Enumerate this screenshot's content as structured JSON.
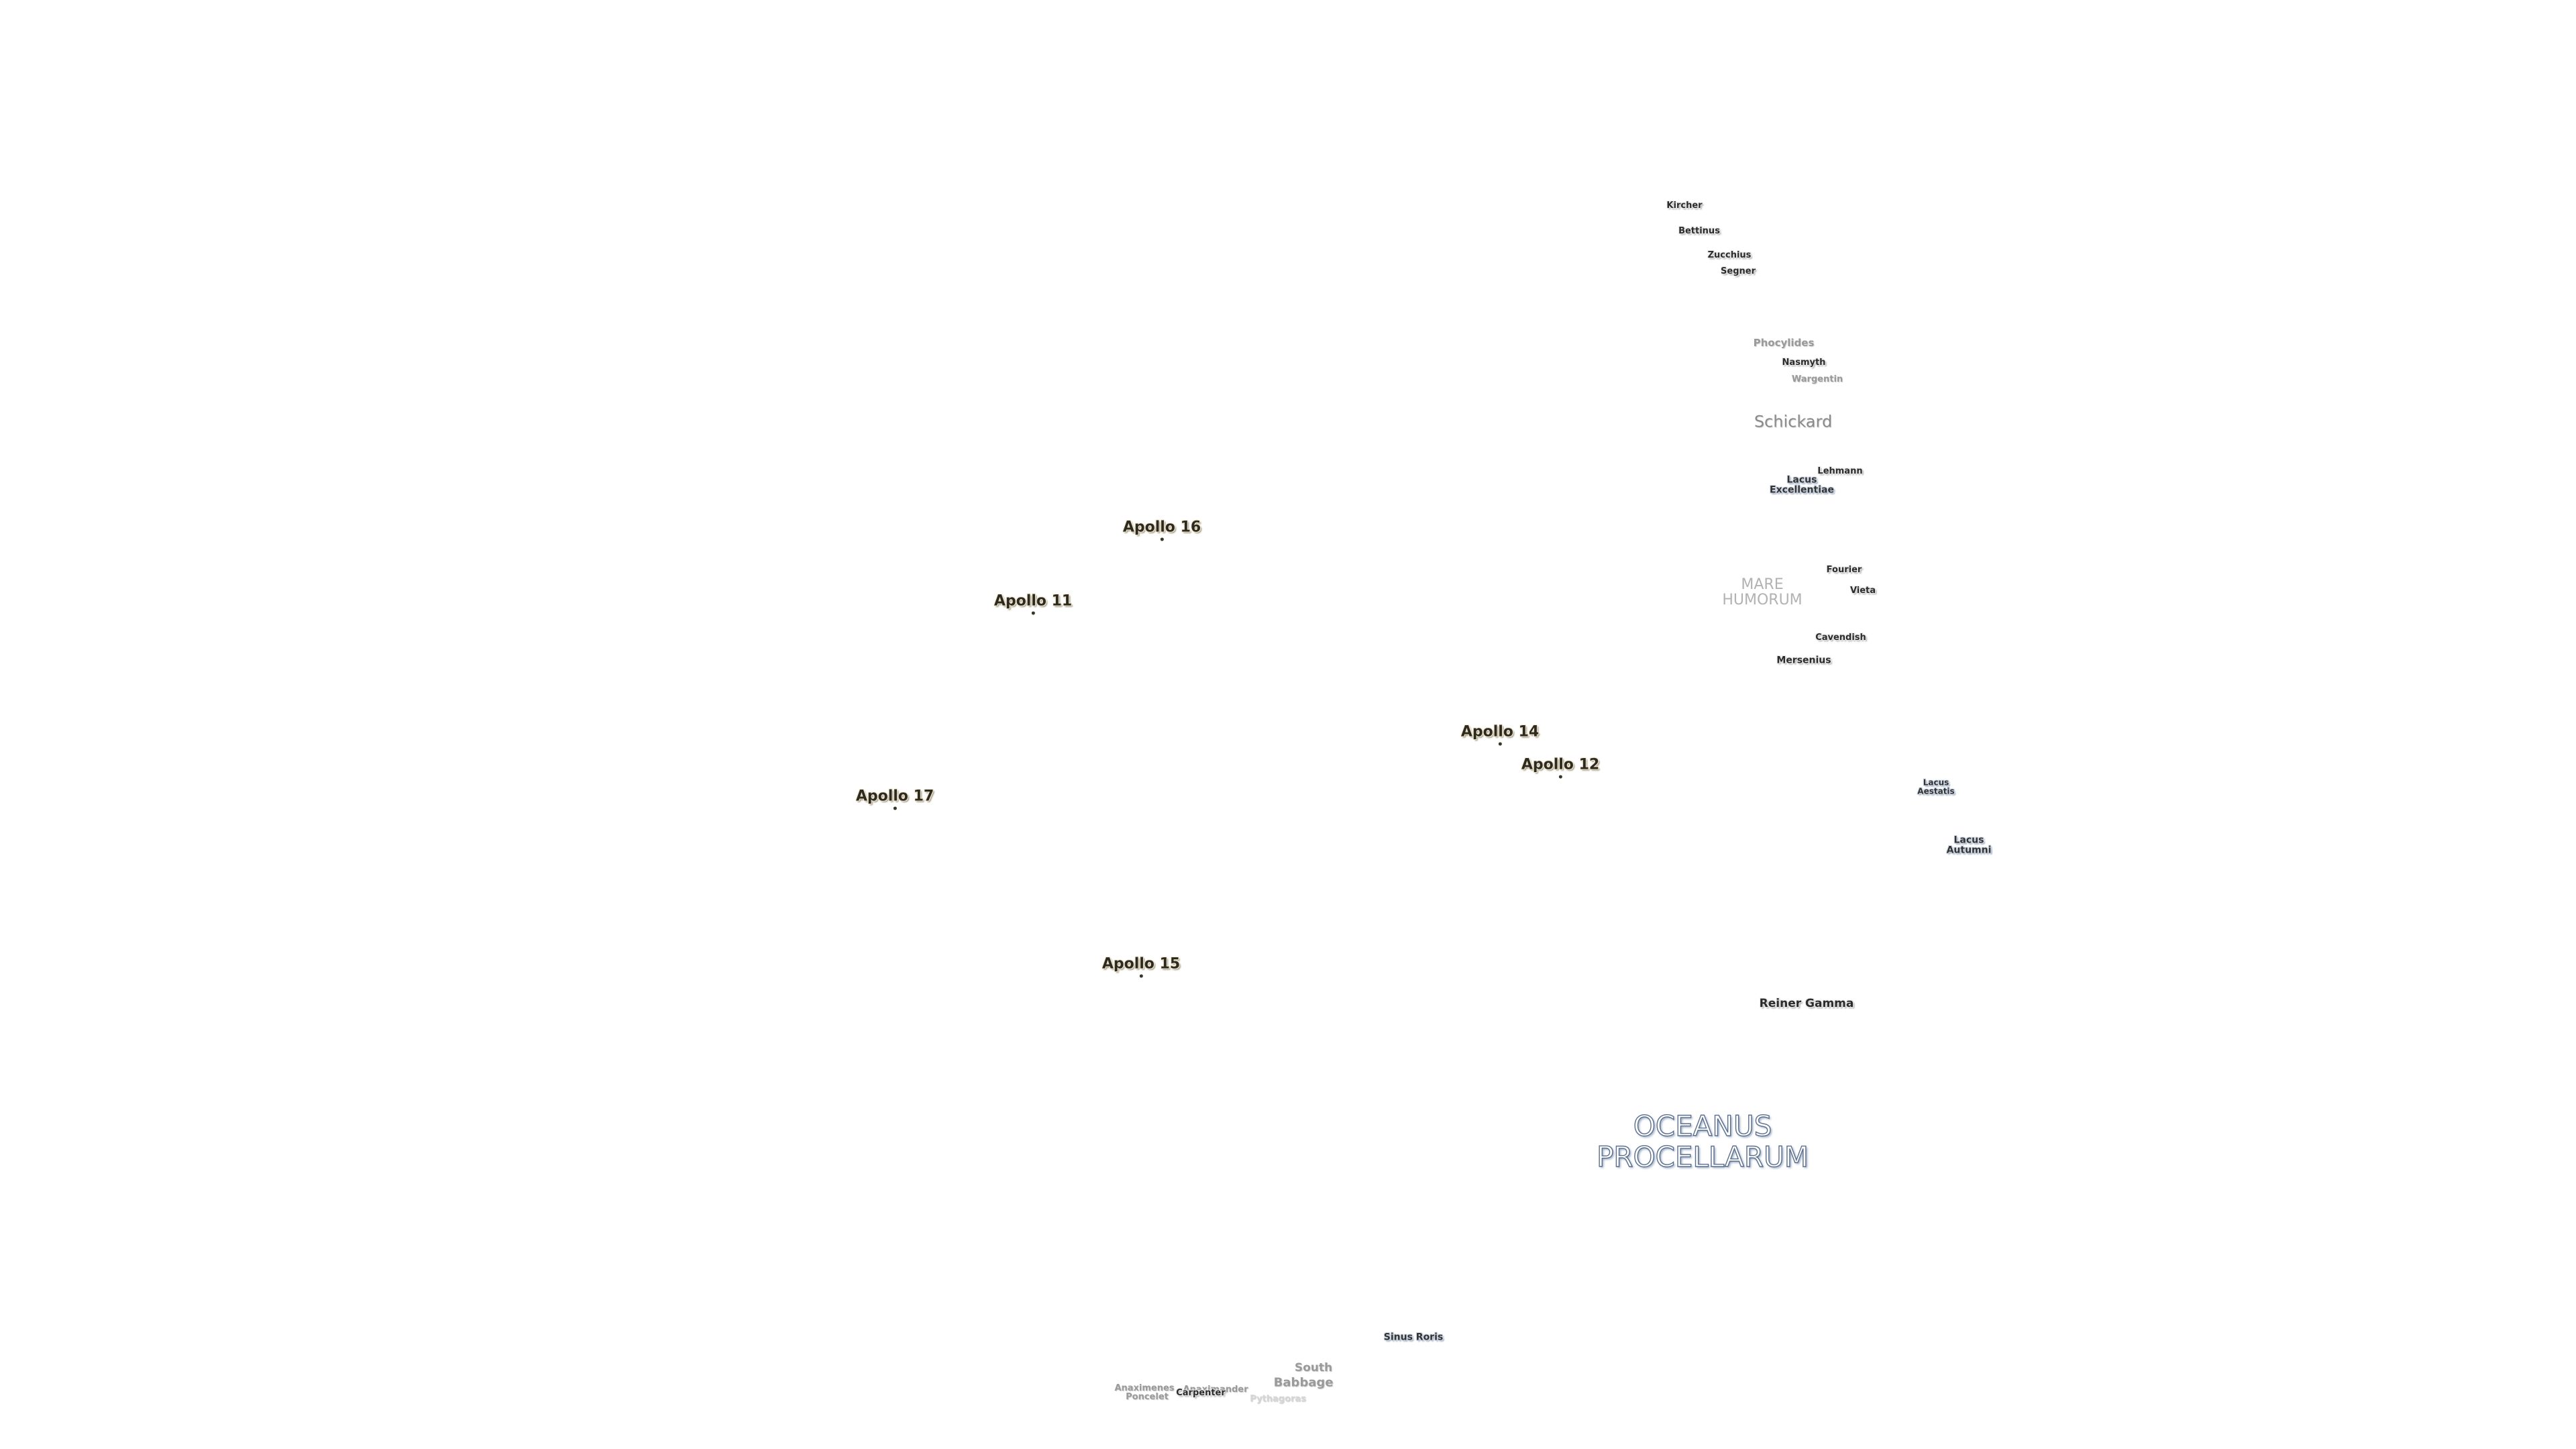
{
  "map": {
    "oceans": [
      {
        "id": "oceanus-procellarum",
        "lines": [
          "OCEANUS",
          "PROCELLARUM"
        ]
      }
    ],
    "maria": [
      {
        "id": "mare-humorum",
        "lines": [
          "MARE",
          "HUMORUM"
        ]
      }
    ],
    "lakes": [
      {
        "id": "lacus-excellentiae",
        "lines": [
          "Lacus",
          "Excellentiae"
        ]
      },
      {
        "id": "lacus-aestatis",
        "lines": [
          "Lacus",
          "Aestatis"
        ]
      },
      {
        "id": "lacus-autumni",
        "lines": [
          "Lacus",
          "Autumni"
        ]
      }
    ],
    "features": [
      {
        "id": "kircher",
        "name": "Kircher"
      },
      {
        "id": "bettinus",
        "name": "Bettinus"
      },
      {
        "id": "zucchius",
        "name": "Zucchius"
      },
      {
        "id": "segner",
        "name": "Segner"
      },
      {
        "id": "phocylides",
        "name": "Phocylides"
      },
      {
        "id": "nasmyth",
        "name": "Nasmyth"
      },
      {
        "id": "wargentin",
        "name": "Wargentin"
      },
      {
        "id": "schickard",
        "name": "Schickard"
      },
      {
        "id": "lehmann",
        "name": "Lehmann"
      },
      {
        "id": "fourier",
        "name": "Fourier"
      },
      {
        "id": "vieta",
        "name": "Vieta"
      },
      {
        "id": "cavendish",
        "name": "Cavendish"
      },
      {
        "id": "mersenius",
        "name": "Mersenius"
      },
      {
        "id": "reiner-gamma",
        "name": "Reiner Gamma"
      },
      {
        "id": "sinus-roris",
        "name": "Sinus Roris"
      },
      {
        "id": "south",
        "name": "South"
      },
      {
        "id": "babbage",
        "name": "Babbage"
      },
      {
        "id": "anaximenes",
        "name": "Anaximenes"
      },
      {
        "id": "poncelet",
        "name": "Poncelet"
      },
      {
        "id": "anaximander",
        "name": "Anaximander"
      },
      {
        "id": "carpenter",
        "name": "Carpenter"
      },
      {
        "id": "pythagoras",
        "name": "Pythagoras"
      }
    ],
    "landing_sites": [
      {
        "id": "apollo-16",
        "name": "Apollo 16"
      },
      {
        "id": "apollo-11",
        "name": "Apollo 11"
      },
      {
        "id": "apollo-14",
        "name": "Apollo 14"
      },
      {
        "id": "apollo-12",
        "name": "Apollo 12"
      },
      {
        "id": "apollo-17",
        "name": "Apollo 17"
      },
      {
        "id": "apollo-15",
        "name": "Apollo 15"
      }
    ]
  }
}
